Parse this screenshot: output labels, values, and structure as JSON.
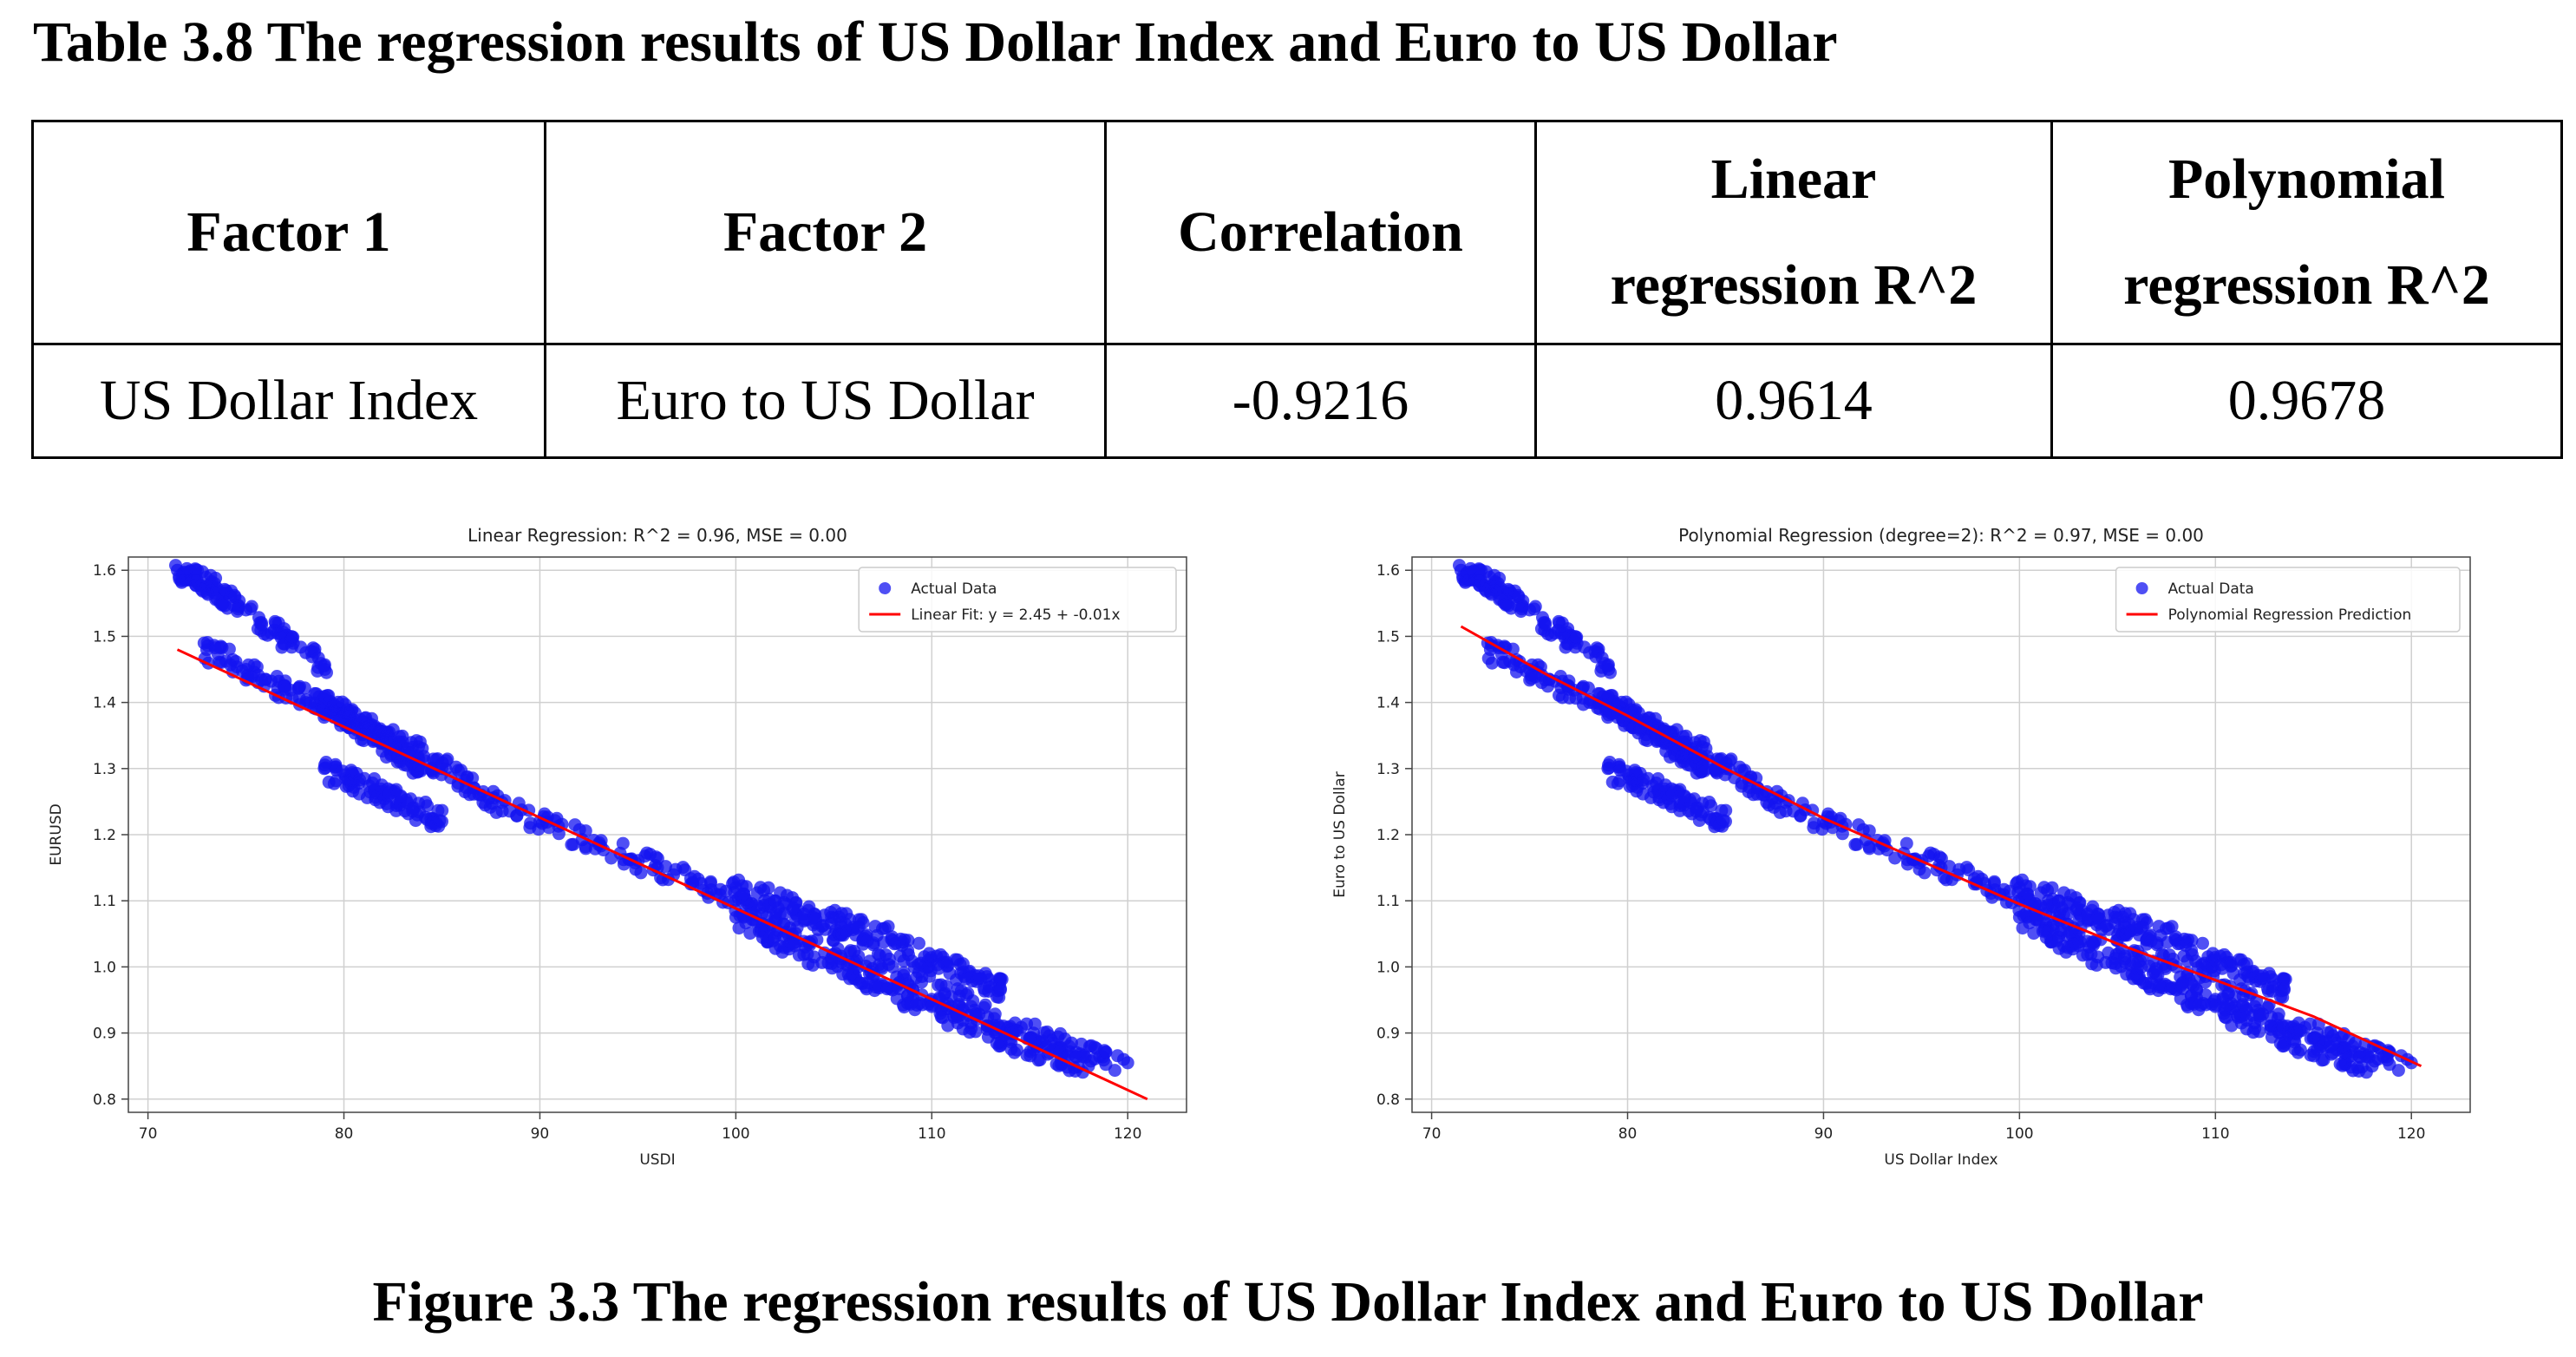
{
  "table_caption": "Table 3.8 The regression results of US Dollar Index and Euro to US Dollar",
  "table": {
    "headers": [
      "Factor 1",
      "Factor 2",
      "Correlation",
      "Linear regression R^2",
      "Polynomial regression R^2"
    ],
    "rows": [
      [
        "US Dollar Index",
        "Euro to US Dollar",
        "-0.9216",
        "0.9614",
        "0.9678"
      ]
    ]
  },
  "chart_data": [
    {
      "type": "scatter",
      "title": "Linear Regression: R^2 = 0.96, MSE = 0.00",
      "xlabel": "USDI",
      "ylabel": "EURUSD",
      "xlim": [
        69,
        123
      ],
      "ylim": [
        0.78,
        1.62
      ],
      "xticks": [
        70,
        80,
        90,
        100,
        110,
        120
      ],
      "yticks": [
        0.8,
        0.9,
        1.0,
        1.1,
        1.2,
        1.3,
        1.4,
        1.5,
        1.6
      ],
      "ytick_labels": [
        "0.8",
        "0.9",
        "1.0",
        "1.1",
        "1.2",
        "1.3",
        "1.4",
        "1.5",
        "1.6"
      ],
      "grid": true,
      "legend_position": "top-right",
      "series": [
        {
          "name": "Actual Data",
          "kind": "points",
          "color": "#1414f0",
          "clusters": [
            {
              "x": [
                71.5,
                72.5,
                73.5,
                75,
                77,
                79
              ],
              "y": [
                1.6,
                1.585,
                1.57,
                1.54,
                1.5,
                1.455
              ]
            },
            {
              "x": [
                73,
                75,
                77,
                79,
                81,
                83,
                85,
                87,
                90,
                93,
                96,
                99,
                102,
                105,
                108,
                111,
                114,
                117,
                120
              ],
              "y": [
                1.48,
                1.45,
                1.42,
                1.39,
                1.37,
                1.34,
                1.3,
                1.26,
                1.22,
                1.185,
                1.15,
                1.11,
                1.07,
                1.04,
                1.0,
                0.955,
                0.91,
                0.88,
                0.855
              ]
            },
            {
              "x": [
                79,
                80,
                81,
                82,
                83,
                84
              ],
              "y": [
                1.4,
                1.38,
                1.36,
                1.34,
                1.32,
                1.3
              ]
            },
            {
              "x": [
                79,
                80.5,
                82,
                83.5,
                85
              ],
              "y": [
                1.3,
                1.28,
                1.26,
                1.24,
                1.22
              ]
            },
            {
              "x": [
                100,
                102,
                104,
                106,
                108,
                110,
                112,
                113.5
              ],
              "y": [
                1.12,
                1.1,
                1.08,
                1.06,
                1.04,
                1.01,
                0.985,
                0.965
              ]
            },
            {
              "x": [
                100,
                102,
                104,
                106,
                108,
                110,
                112,
                114,
                116,
                118
              ],
              "y": [
                1.075,
                1.045,
                1.015,
                0.99,
                0.965,
                0.94,
                0.915,
                0.89,
                0.87,
                0.85
              ]
            }
          ]
        },
        {
          "name": "Linear Fit: y = 2.45 + -0.01x",
          "kind": "line",
          "color": "#ff0000",
          "x": [
            71.5,
            121
          ],
          "y": [
            1.48,
            0.8
          ]
        }
      ]
    },
    {
      "type": "scatter",
      "title": "Polynomial Regression (degree=2): R^2 = 0.97, MSE = 0.00",
      "xlabel": "US Dollar Index",
      "ylabel": "Euro to US Dollar",
      "xlim": [
        69,
        123
      ],
      "ylim": [
        0.78,
        1.62
      ],
      "xticks": [
        70,
        80,
        90,
        100,
        110,
        120
      ],
      "yticks": [
        0.8,
        0.9,
        1.0,
        1.1,
        1.2,
        1.3,
        1.4,
        1.5,
        1.6
      ],
      "ytick_labels": [
        "0.8",
        "0.9",
        "1.0",
        "1.1",
        "1.2",
        "1.3",
        "1.4",
        "1.5",
        "1.6"
      ],
      "grid": true,
      "legend_position": "top-right",
      "series": [
        {
          "name": "Actual Data",
          "kind": "points",
          "color": "#1414f0",
          "clusters": [
            {
              "x": [
                71.5,
                72.5,
                73.5,
                75,
                77,
                79
              ],
              "y": [
                1.6,
                1.585,
                1.57,
                1.54,
                1.5,
                1.455
              ]
            },
            {
              "x": [
                73,
                75,
                77,
                79,
                81,
                83,
                85,
                87,
                90,
                93,
                96,
                99,
                102,
                105,
                108,
                111,
                114,
                117,
                120
              ],
              "y": [
                1.48,
                1.45,
                1.42,
                1.39,
                1.37,
                1.34,
                1.3,
                1.26,
                1.22,
                1.185,
                1.15,
                1.11,
                1.07,
                1.04,
                1.0,
                0.955,
                0.91,
                0.88,
                0.855
              ]
            },
            {
              "x": [
                79,
                80,
                81,
                82,
                83,
                84
              ],
              "y": [
                1.4,
                1.38,
                1.36,
                1.34,
                1.32,
                1.3
              ]
            },
            {
              "x": [
                79,
                80.5,
                82,
                83.5,
                85
              ],
              "y": [
                1.3,
                1.28,
                1.26,
                1.24,
                1.22
              ]
            },
            {
              "x": [
                100,
                102,
                104,
                106,
                108,
                110,
                112,
                113.5
              ],
              "y": [
                1.12,
                1.1,
                1.08,
                1.06,
                1.04,
                1.01,
                0.985,
                0.965
              ]
            },
            {
              "x": [
                100,
                102,
                104,
                106,
                108,
                110,
                112,
                114,
                116,
                118
              ],
              "y": [
                1.075,
                1.045,
                1.015,
                0.99,
                0.965,
                0.94,
                0.915,
                0.89,
                0.87,
                0.85
              ]
            }
          ]
        },
        {
          "name": "Polynomial Regression Prediction",
          "kind": "line",
          "color": "#ff0000",
          "x": [
            71.5,
            76,
            80,
            85,
            90,
            95,
            100,
            105,
            110,
            115,
            120.5
          ],
          "y": [
            1.515,
            1.44,
            1.38,
            1.3,
            1.225,
            1.16,
            1.095,
            1.035,
            0.98,
            0.925,
            0.85
          ]
        }
      ]
    }
  ],
  "figure_caption": "Figure 3.3 The regression results of US Dollar Index and Euro to US Dollar"
}
